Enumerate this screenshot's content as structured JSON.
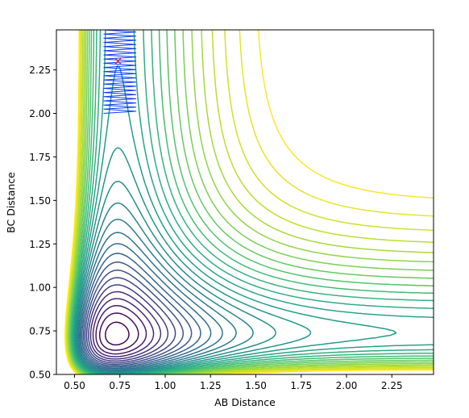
{
  "chart_data": {
    "type": "contour",
    "title": "",
    "xlabel": "AB Distance",
    "ylabel": "BC Distance",
    "xlim": [
      0.4,
      2.48
    ],
    "ylim": [
      0.5,
      2.48
    ],
    "xticks": [
      0.5,
      0.75,
      1.0,
      1.25,
      1.5,
      1.75,
      2.0,
      2.25
    ],
    "xtick_labels": [
      "0.50",
      "0.75",
      "1.00",
      "1.25",
      "1.50",
      "1.75",
      "2.00",
      "2.25"
    ],
    "yticks": [
      0.5,
      0.75,
      1.0,
      1.25,
      1.5,
      1.75,
      2.0,
      2.25
    ],
    "ytick_labels": [
      "0.50",
      "0.75",
      "1.00",
      "1.25",
      "1.50",
      "1.75",
      "2.00",
      "2.25"
    ],
    "colormap": "viridis",
    "grid": false,
    "contour_levels": 30,
    "marker": {
      "symbol": "x",
      "color": "#d62728",
      "x": 0.74,
      "y": 2.3
    },
    "trajectory": {
      "color_start": "#1f9fe0",
      "color_end": "#0a3cff",
      "x_range": [
        0.66,
        0.84
      ],
      "y_range": [
        2.0,
        2.48
      ]
    }
  }
}
